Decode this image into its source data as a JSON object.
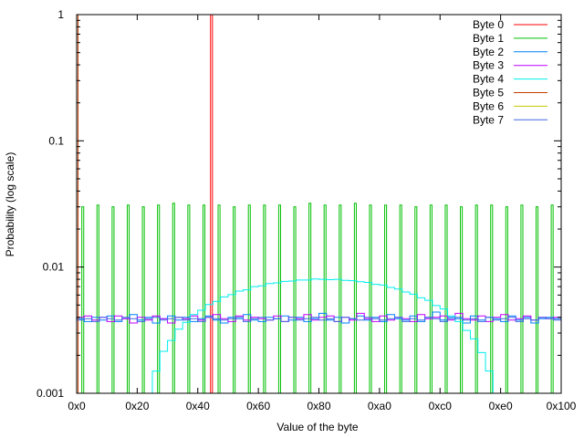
{
  "chart_data": {
    "type": "line",
    "title": "",
    "xlabel": "Value of the byte",
    "ylabel": "Probability (log scale)",
    "xlim": [
      0,
      256
    ],
    "ylim": [
      0.001,
      1
    ],
    "yscale": "log",
    "grid": false,
    "legend_position": "top-right",
    "x_ticks": [
      {
        "value": 0,
        "label": "0x0"
      },
      {
        "value": 32,
        "label": "0x20"
      },
      {
        "value": 64,
        "label": "0x40"
      },
      {
        "value": 96,
        "label": "0x60"
      },
      {
        "value": 128,
        "label": "0x80"
      },
      {
        "value": 160,
        "label": "0xa0"
      },
      {
        "value": 192,
        "label": "0xc0"
      },
      {
        "value": 224,
        "label": "0xe0"
      },
      {
        "value": 256,
        "label": "0x100"
      }
    ],
    "y_ticks": [
      {
        "value": 1,
        "label": "1"
      },
      {
        "value": 0.1,
        "label": "0.1"
      },
      {
        "value": 0.01,
        "label": "0.01"
      },
      {
        "value": 0.001,
        "label": "0.001"
      }
    ],
    "series": [
      {
        "name": "Byte 0",
        "color": "#ff0000",
        "kind": "spikes",
        "x": [
          71
        ],
        "values": [
          1.0
        ]
      },
      {
        "name": "Byte 1",
        "color": "#00c000",
        "kind": "spikes",
        "x": [
          3,
          11,
          19,
          27,
          35,
          43,
          51,
          59,
          67,
          75,
          83,
          91,
          99,
          107,
          115,
          123,
          131,
          139,
          147,
          155,
          163,
          171,
          179,
          187,
          195,
          203,
          211,
          219,
          227,
          235,
          243,
          251
        ],
        "values": [
          0.03,
          0.031,
          0.03,
          0.031,
          0.03,
          0.031,
          0.032,
          0.031,
          0.031,
          0.031,
          0.03,
          0.031,
          0.031,
          0.031,
          0.03,
          0.032,
          0.031,
          0.031,
          0.032,
          0.031,
          0.031,
          0.031,
          0.03,
          0.031,
          0.031,
          0.03,
          0.031,
          0.031,
          0.03,
          0.031,
          0.03,
          0.031
        ]
      },
      {
        "name": "Byte 2",
        "color": "#0080ff",
        "kind": "steps",
        "x_start": 0,
        "x_step": 4,
        "values": [
          0.0039,
          0.0037,
          0.004,
          0.0038,
          0.0041,
          0.0037,
          0.0039,
          0.0042,
          0.0038,
          0.004,
          0.0036,
          0.0039,
          0.0041,
          0.0038,
          0.004,
          0.0037,
          0.0039,
          0.0041,
          0.0038,
          0.0036,
          0.004,
          0.0039,
          0.0042,
          0.0038,
          0.0037,
          0.004,
          0.0039,
          0.0041,
          0.0038,
          0.004,
          0.0037,
          0.0039,
          0.0043,
          0.0038,
          0.004,
          0.0036,
          0.0039,
          0.0041,
          0.0038,
          0.004,
          0.0037,
          0.0042,
          0.0039,
          0.0038,
          0.0041,
          0.0037,
          0.004,
          0.0044,
          0.0038,
          0.004,
          0.0039,
          0.0036,
          0.0041,
          0.0038,
          0.004,
          0.0039,
          0.0037,
          0.0041,
          0.0038,
          0.004,
          0.0036,
          0.0039,
          0.004,
          0.0039
        ]
      },
      {
        "name": "Byte 3",
        "color": "#c000ff",
        "kind": "steps",
        "x_start": 0,
        "x_step": 4,
        "values": [
          0.004,
          0.0041,
          0.0038,
          0.004,
          0.0037,
          0.0041,
          0.0039,
          0.0036,
          0.004,
          0.0038,
          0.0041,
          0.0039,
          0.0036,
          0.004,
          0.0039,
          0.0041,
          0.0038,
          0.004,
          0.0042,
          0.0039,
          0.0037,
          0.0041,
          0.0038,
          0.004,
          0.0039,
          0.0038,
          0.0041,
          0.0037,
          0.004,
          0.0039,
          0.0042,
          0.0038,
          0.004,
          0.0041,
          0.0037,
          0.004,
          0.0038,
          0.0043,
          0.0039,
          0.0037,
          0.0041,
          0.0038,
          0.004,
          0.0039,
          0.0037,
          0.0042,
          0.0039,
          0.004,
          0.0041,
          0.0038,
          0.0043,
          0.0039,
          0.0038,
          0.0041,
          0.0037,
          0.004,
          0.0042,
          0.0038,
          0.0039,
          0.0041,
          0.0038,
          0.004,
          0.0039,
          0.004
        ]
      },
      {
        "name": "Byte 4",
        "color": "#00eeee",
        "kind": "steps",
        "x_start": 36,
        "x_step": 4,
        "values": [
          0.00095,
          0.0015,
          0.00215,
          0.00262,
          0.00322,
          0.00365,
          0.0042,
          0.00455,
          0.00505,
          0.00535,
          0.0058,
          0.00605,
          0.00645,
          0.0066,
          0.007,
          0.0071,
          0.0074,
          0.0075,
          0.0077,
          0.00775,
          0.0079,
          0.0079,
          0.00805,
          0.008,
          0.00795,
          0.008,
          0.00785,
          0.0078,
          0.00765,
          0.00755,
          0.0073,
          0.0072,
          0.0069,
          0.0067,
          0.00635,
          0.0061,
          0.0057,
          0.00545,
          0.00495,
          0.00465,
          0.0041,
          0.0037,
          0.00315,
          0.0027,
          0.0021,
          0.0015,
          0.001
        ]
      },
      {
        "name": "Byte 5",
        "color": "#c04000",
        "kind": "spikes",
        "x": [
          0
        ],
        "values": [
          1.0
        ]
      },
      {
        "name": "Byte 6",
        "color": "#c8c800",
        "kind": "spikes",
        "x": [],
        "values": []
      },
      {
        "name": "Byte 7",
        "color": "#4169e1",
        "kind": "steps",
        "x_start": 0,
        "x_step": 4,
        "values": [
          0.0038,
          0.0039,
          0.0037,
          0.004,
          0.0039,
          0.0038,
          0.004,
          0.0039,
          0.0037,
          0.0039,
          0.004,
          0.0038,
          0.0039,
          0.004,
          0.0038,
          0.0039,
          0.0037,
          0.004,
          0.0039,
          0.0038,
          0.0039,
          0.004,
          0.0037,
          0.0039,
          0.004,
          0.0038,
          0.0039,
          0.0037,
          0.004,
          0.0038,
          0.0039,
          0.004,
          0.0038,
          0.0039,
          0.0037,
          0.004,
          0.0039,
          0.0038,
          0.004,
          0.0039,
          0.0038,
          0.0039,
          0.004,
          0.0037,
          0.0039,
          0.0038,
          0.004,
          0.0039,
          0.0037,
          0.0039,
          0.004,
          0.0038,
          0.0039,
          0.0037,
          0.004,
          0.0038,
          0.0039,
          0.004,
          0.0037,
          0.0039,
          0.0038,
          0.004,
          0.0039,
          0.0038
        ]
      }
    ]
  }
}
